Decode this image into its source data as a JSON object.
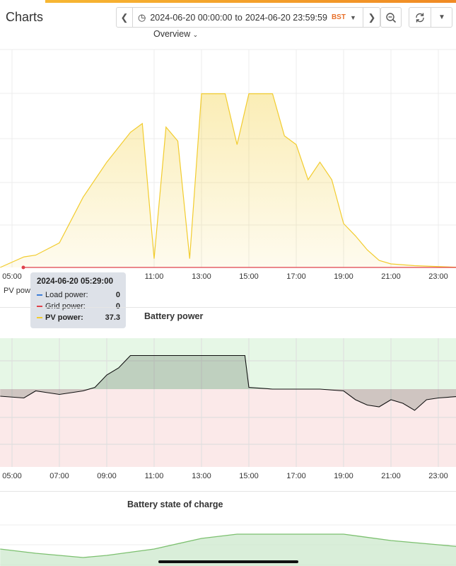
{
  "header": {
    "title": "Charts",
    "range_from": "2024-06-20 00:00:00",
    "range_to_word": "to",
    "range_to": "2024-06-20 23:59:59",
    "timezone": "BST"
  },
  "panels": {
    "overview": {
      "title": "Overview",
      "legend_label": "PV powe"
    },
    "battery_power": {
      "title": "Battery power"
    },
    "battery_soc": {
      "title": "Battery state of charge"
    }
  },
  "tooltip": {
    "time": "2024-06-20 05:29:00",
    "rows": [
      {
        "label": "Load power:",
        "value": "0",
        "color": "#3d7fd9"
      },
      {
        "label": "Grid power:",
        "value": "0",
        "color": "#e0414b"
      },
      {
        "label": "PV power:",
        "value": "37.3",
        "color": "#f2cc2e"
      }
    ]
  },
  "chart_data": [
    {
      "type": "area",
      "title": "Overview",
      "x_ticks": [
        "05:00",
        "11:00",
        "13:00",
        "15:00",
        "17:00",
        "19:00",
        "21:00",
        "23:00"
      ],
      "series": [
        {
          "name": "PV power",
          "color": "#f2cc2e",
          "x": [
            "04:30",
            "05:30",
            "06:00",
            "07:00",
            "08:00",
            "09:00",
            "10:00",
            "10:30",
            "11:00",
            "11:30",
            "12:00",
            "12:30",
            "13:00",
            "13:30",
            "14:00",
            "14:30",
            "15:00",
            "15:30",
            "16:00",
            "16:30",
            "17:00",
            "17:30",
            "18:00",
            "18:30",
            "19:00",
            "19:30",
            "20:00",
            "20:30",
            "21:00",
            "22:00",
            "23:59"
          ],
          "y": [
            0,
            0.06,
            0.07,
            0.14,
            0.4,
            0.6,
            0.77,
            0.82,
            0.05,
            0.8,
            0.72,
            0.05,
            0.99,
            0.99,
            0.99,
            0.7,
            0.99,
            0.99,
            0.99,
            0.75,
            0.7,
            0.5,
            0.6,
            0.5,
            0.25,
            0.18,
            0.1,
            0.04,
            0.02,
            0.01,
            0
          ]
        },
        {
          "name": "Load power",
          "color": "#3d7fd9"
        },
        {
          "name": "Grid power",
          "color": "#e0414b"
        }
      ]
    },
    {
      "type": "line",
      "title": "Battery power",
      "x_ticks": [
        "05:00",
        "07:00",
        "09:00",
        "11:00",
        "13:00",
        "15:00",
        "17:00",
        "19:00",
        "21:00",
        "23:00"
      ],
      "series": [
        {
          "name": "Battery power",
          "color": "#111111",
          "x": [
            "04:30",
            "05:30",
            "06:00",
            "06:30",
            "07:00",
            "07:30",
            "08:00",
            "08:30",
            "09:00",
            "09:30",
            "10:00",
            "11:00",
            "12:00",
            "13:00",
            "14:00",
            "14:50",
            "15:00",
            "16:00",
            "17:00",
            "18:00",
            "19:00",
            "19:30",
            "20:00",
            "20:30",
            "21:00",
            "21:30",
            "22:00",
            "22:30",
            "23:00",
            "23:59"
          ],
          "y": [
            -0.2,
            -0.25,
            -0.05,
            -0.1,
            -0.15,
            -0.1,
            -0.05,
            0.05,
            0.4,
            0.6,
            0.95,
            0.95,
            0.95,
            0.95,
            0.95,
            0.95,
            0.05,
            0.0,
            0.0,
            0.0,
            -0.05,
            -0.3,
            -0.45,
            -0.5,
            -0.3,
            -0.4,
            -0.6,
            -0.3,
            -0.25,
            -0.2
          ]
        }
      ]
    },
    {
      "type": "area",
      "title": "Battery state of charge",
      "series": [
        {
          "name": "Battery state of charge",
          "color": "#7cc06f",
          "x": [
            "04:30",
            "06:00",
            "08:00",
            "09:00",
            "11:00",
            "13:00",
            "14:30",
            "17:00",
            "19:00",
            "21:00",
            "23:00",
            "23:59"
          ],
          "y": [
            0.4,
            0.3,
            0.2,
            0.25,
            0.4,
            0.65,
            0.75,
            0.75,
            0.75,
            0.6,
            0.5,
            0.45
          ]
        }
      ]
    }
  ],
  "colors": {
    "accent": "#f08a24",
    "pv": "#f2cc2e",
    "positive_band": "#e6f7e6",
    "negative_band": "#fbe9e9"
  }
}
